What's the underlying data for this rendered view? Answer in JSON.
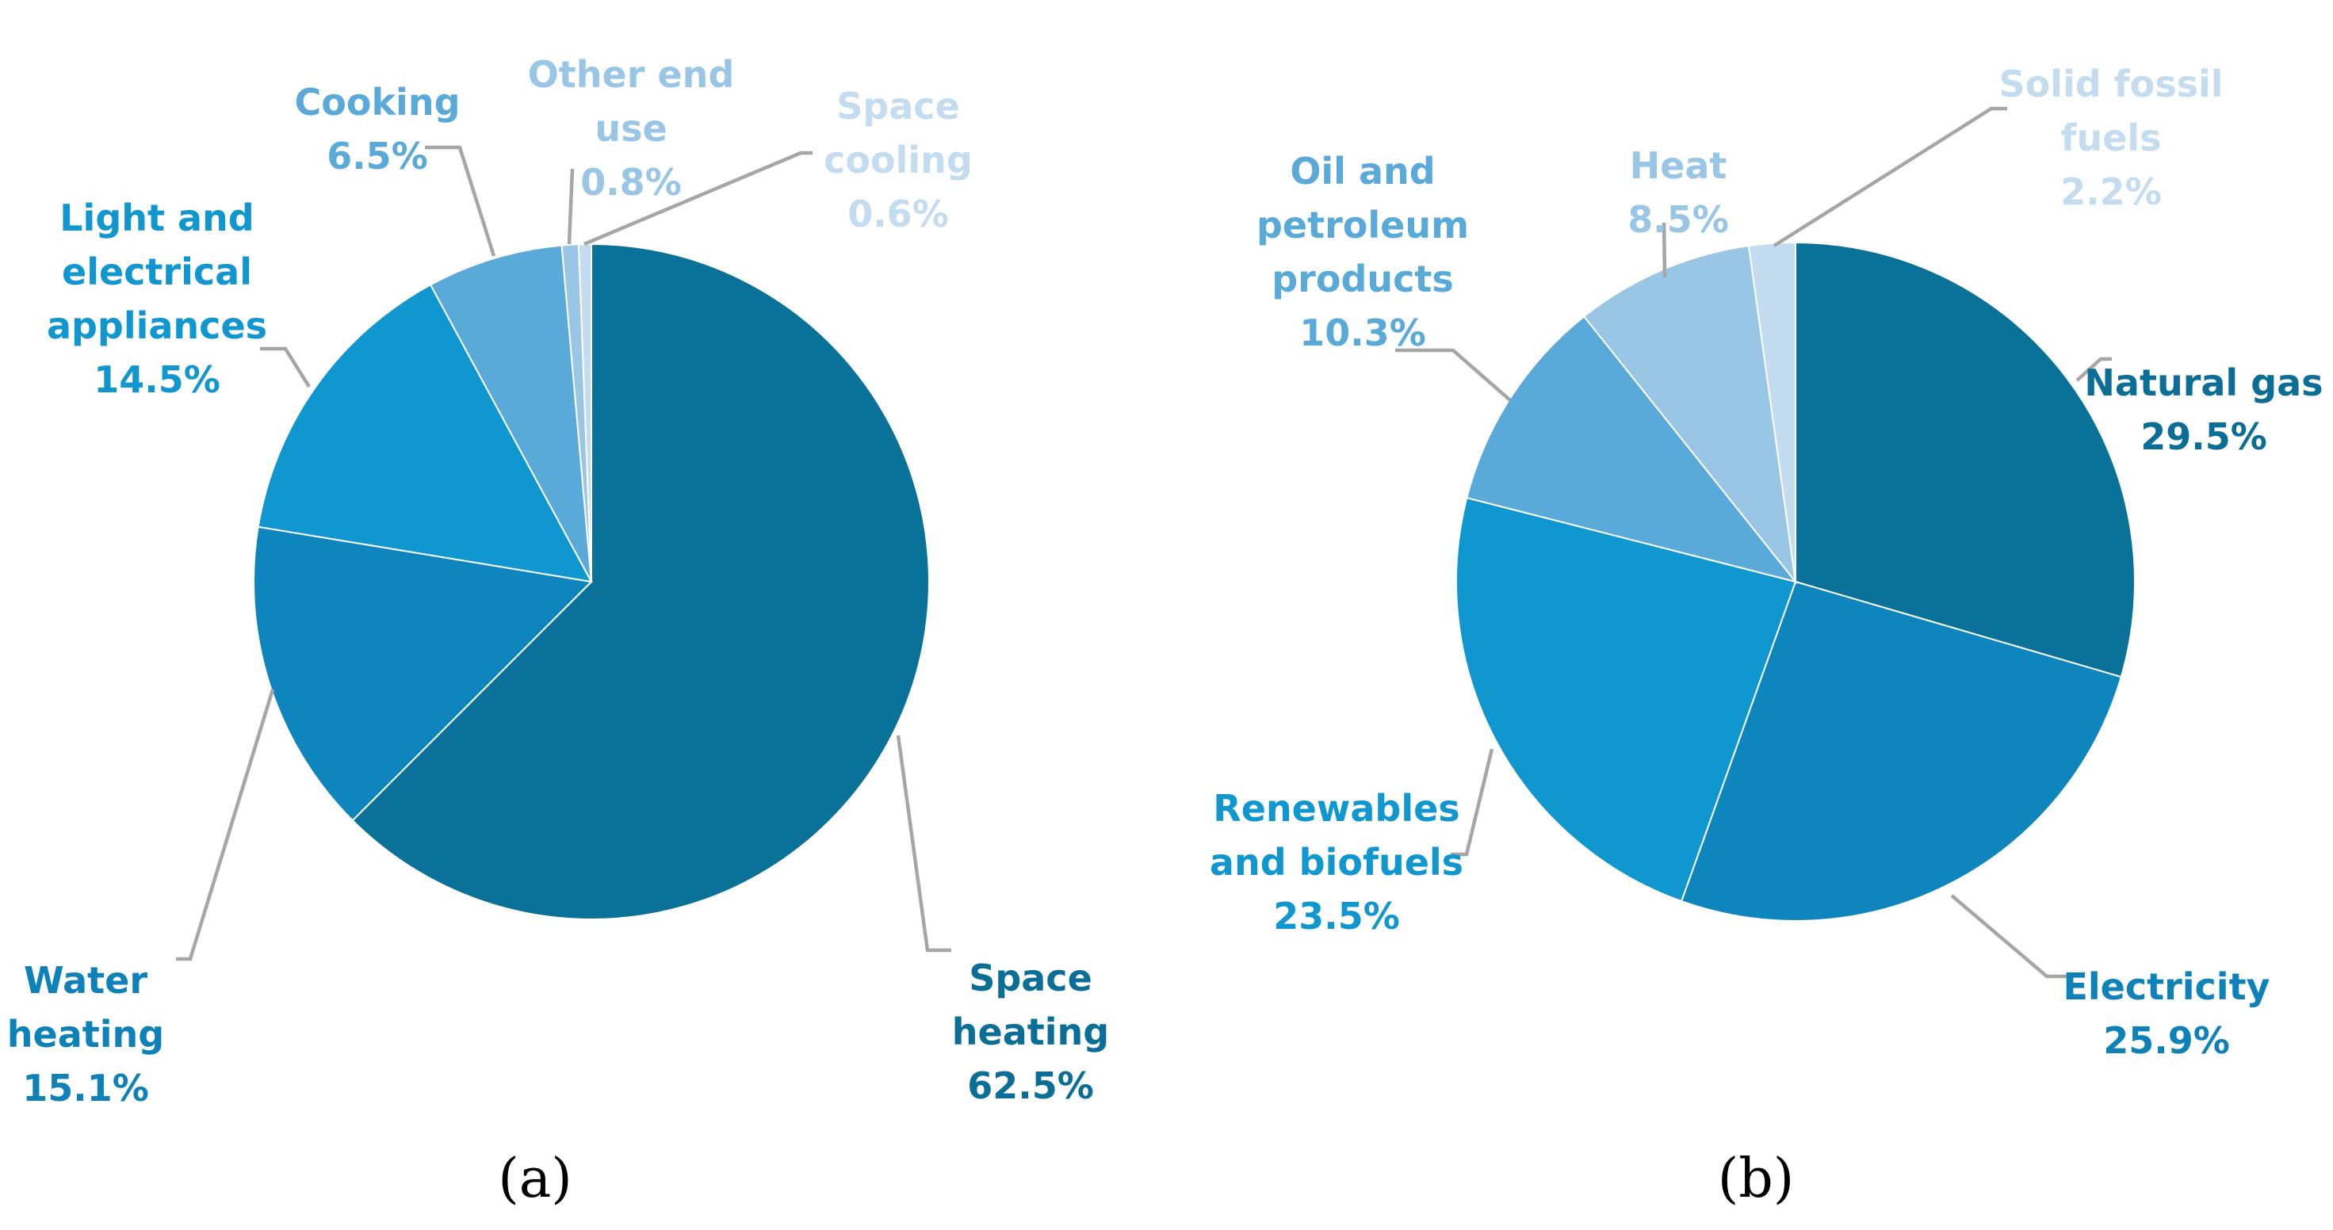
{
  "chart_data": [
    {
      "type": "pie",
      "caption": "(a)",
      "slices": [
        {
          "id": "space-heating",
          "label_lines": [
            "Space",
            "heating"
          ],
          "pct_label": "62.5%",
          "value": 62.5,
          "color": "#0a7299",
          "label_color": "#0a6e96"
        },
        {
          "id": "water-heating",
          "label_lines": [
            "Water",
            "heating"
          ],
          "pct_label": "15.1%",
          "value": 15.1,
          "color": "#0e86bd",
          "label_color": "#0e82b8"
        },
        {
          "id": "light-electrical",
          "label_lines": [
            "Light and",
            "electrical",
            "appliances"
          ],
          "pct_label": "14.5%",
          "value": 14.5,
          "color": "#1197cf",
          "label_color": "#1197cf"
        },
        {
          "id": "cooking",
          "label_lines": [
            "Cooking"
          ],
          "pct_label": "6.5%",
          "value": 6.5,
          "color": "#5aaad9",
          "label_color": "#5aaad9"
        },
        {
          "id": "other-end-use",
          "label_lines": [
            "Other end",
            "use"
          ],
          "pct_label": "0.8%",
          "value": 0.8,
          "color": "#9ac6e6",
          "label_color": "#9ac6e6"
        },
        {
          "id": "space-cooling",
          "label_lines": [
            "Space",
            "cooling"
          ],
          "pct_label": "0.6%",
          "value": 0.6,
          "color": "#c3dcef",
          "label_color": "#c3dcef"
        }
      ]
    },
    {
      "type": "pie",
      "caption": "(b)",
      "slices": [
        {
          "id": "natural-gas",
          "label_lines": [
            "Natural gas"
          ],
          "pct_label": "29.5%",
          "value": 29.5,
          "color": "#0a7299",
          "label_color": "#0a6e96"
        },
        {
          "id": "electricity",
          "label_lines": [
            "Electricity"
          ],
          "pct_label": "25.9%",
          "value": 25.9,
          "color": "#0e86bd",
          "label_color": "#0e82b8"
        },
        {
          "id": "renewables",
          "label_lines": [
            "Renewables",
            "and biofuels"
          ],
          "pct_label": "23.5%",
          "value": 23.5,
          "color": "#1197cf",
          "label_color": "#1197cf"
        },
        {
          "id": "oil-petroleum",
          "label_lines": [
            "Oil and",
            "petroleum",
            "products"
          ],
          "pct_label": "10.3%",
          "value": 10.3,
          "color": "#5aaad9",
          "label_color": "#5aaad9"
        },
        {
          "id": "heat",
          "label_lines": [
            "Heat"
          ],
          "pct_label": "8.5%",
          "value": 8.5,
          "color": "#9ac6e6",
          "label_color": "#9ac6e6"
        },
        {
          "id": "solid-fossil",
          "label_lines": [
            "Solid fossil",
            "fuels"
          ],
          "pct_label": "2.2%",
          "value": 2.2,
          "color": "#c3dcef",
          "label_color": "#c3dcef"
        }
      ]
    }
  ]
}
